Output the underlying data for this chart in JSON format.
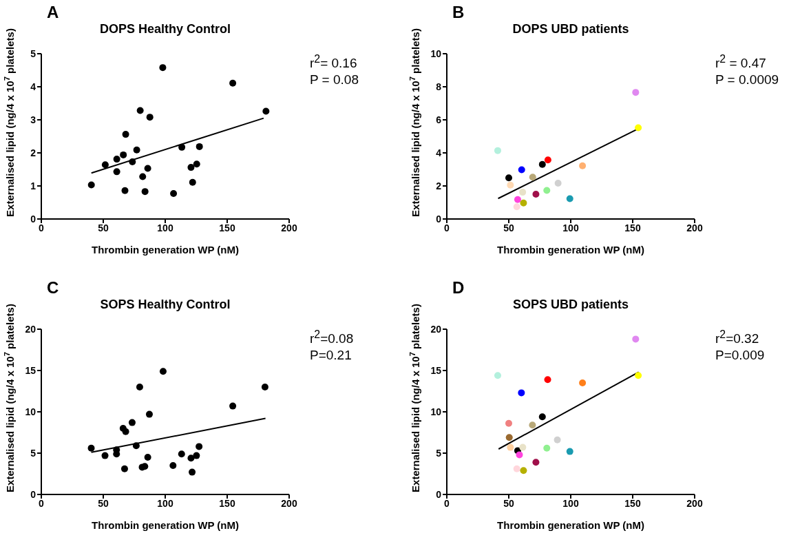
{
  "chart_data": [
    {
      "type": "scatter",
      "title": "DOPS Healthy Control",
      "xlabel": "Thrombin generation WP (nM)",
      "ylabel": "Externalised lipid (ng/4 x 10$^{7}$ platelets)",
      "xlim": [
        0,
        200
      ],
      "xticks": [
        0,
        50,
        100,
        150,
        200
      ],
      "ylim": [
        0,
        5
      ],
      "yticks": [
        0,
        1,
        2,
        3,
        4,
        5
      ],
      "annotations": [
        "A",
        "r$^{2}$= 0.16",
        "P = 0.08"
      ],
      "series": [
        {
          "marker": "circle",
          "color": "#000000",
          "x": [
            40.4,
            51.6,
            60.9,
            60.9,
            66.2,
            68.1,
            67.5,
            73.5,
            77.0,
            79.8,
            81.8,
            83.7,
            85.9,
            87.6,
            98.0,
            106.7,
            113.4,
            120.8,
            122.1,
            125.4,
            127.6,
            154.5,
            181.3
          ],
          "values": [
            1.03,
            1.64,
            1.43,
            1.81,
            1.94,
            2.56,
            0.86,
            1.73,
            2.09,
            3.28,
            1.28,
            0.83,
            1.53,
            3.08,
            4.58,
            0.77,
            2.17,
            1.56,
            1.11,
            1.66,
            2.19,
            4.11,
            3.26
          ]
        },
        {
          "type": "line",
          "marker": "none",
          "color": "#000000",
          "x": [
            40.4,
            179.4
          ],
          "values": [
            1.39,
            3.05
          ]
        }
      ]
    },
    {
      "type": "scatter",
      "title": "DOPS UBD patients",
      "xlabel": "Thrombin generation WP (nM)",
      "ylabel": "Externalised lipid (ng/4 x 10$^{7}$ platelets)",
      "xlim": [
        0,
        200
      ],
      "xticks": [
        0,
        50,
        100,
        150,
        200
      ],
      "ylim": [
        0,
        10
      ],
      "yticks": [
        0,
        2,
        4,
        6,
        8,
        10
      ],
      "annotations": [
        "B",
        "r$^{2}$ = 0.47",
        "P = 0.0009"
      ],
      "series": [
        {
          "marker": "circle",
          "x": [
            41.1,
            50.0,
            51.3,
            60.4,
            56.5,
            57.2,
            61.2,
            61.9,
            69.3,
            71.9,
            77.1,
            81.6,
            80.7,
            89.8,
            99.3,
            109.5,
            152.4,
            154.5
          ],
          "values": [
            4.14,
            2.49,
            2.05,
            2.98,
            0.74,
            1.18,
            1.62,
            0.97,
            2.53,
            1.5,
            3.3,
            3.57,
            1.73,
            2.17,
            1.23,
            3.22,
            7.66,
            5.52
          ],
          "colors": [
            "#b3f0dd",
            "#000000",
            "#ffd9b3",
            "#0000ff",
            "#ffd6dc",
            "#ff44dd",
            "#e8e2c8",
            "#b5b000",
            "#b8a878",
            "#a0104a",
            "#000000",
            "#ff0000",
            "#90f090",
            "#d0d0d0",
            "#1a9bb0",
            "#ffb070",
            "#e088f0",
            "#ffff00"
          ]
        },
        {
          "type": "line",
          "marker": "none",
          "color": "#000000",
          "x": [
            41.4,
            154.3
          ],
          "values": [
            1.24,
            5.45
          ]
        }
      ]
    },
    {
      "type": "scatter",
      "title": "SOPS Healthy Control",
      "xlabel": "Thrombin generation WP (nM)",
      "ylabel": "Externalised lipid (ng/4 x 10$^{7}$ platelets)",
      "xlim": [
        0,
        200
      ],
      "xticks": [
        0,
        50,
        100,
        150,
        200
      ],
      "ylim": [
        0,
        20
      ],
      "yticks": [
        0,
        5,
        10,
        15,
        20
      ],
      "annotations": [
        "C",
        "r$^{2}$=0.08",
        "P=0.21"
      ],
      "series": [
        {
          "marker": "circle",
          "color": "#000000",
          "x": [
            40.3,
            51.4,
            60.7,
            60.7,
            66.0,
            67.2,
            68.1,
            73.3,
            76.6,
            79.4,
            81.4,
            83.5,
            85.9,
            87.2,
            98.3,
            106.3,
            113.2,
            120.8,
            121.7,
            125.2,
            127.3,
            154.5,
            180.5
          ],
          "values": [
            5.6,
            4.7,
            5.4,
            4.9,
            8.0,
            3.1,
            7.6,
            8.7,
            5.9,
            13.0,
            3.3,
            3.4,
            4.5,
            9.7,
            14.9,
            3.5,
            4.9,
            4.4,
            2.7,
            4.7,
            5.8,
            10.7,
            13.0
          ]
        },
        {
          "type": "line",
          "marker": "none",
          "color": "#000000",
          "x": [
            40.3,
            180.9
          ],
          "values": [
            5.1,
            9.2
          ]
        }
      ]
    },
    {
      "type": "scatter",
      "title": "SOPS UBD patients",
      "xlabel": "Thrombin generation WP (nM)",
      "ylabel": "Externalised lipid (ng/4 x 10$^{7}$ platelets)",
      "xlim": [
        0,
        200
      ],
      "xticks": [
        0,
        50,
        100,
        150,
        200
      ],
      "ylim": [
        0,
        20
      ],
      "yticks": [
        0,
        5,
        10,
        15,
        20
      ],
      "annotations": [
        "D",
        "r$^{2}$=0.32",
        "P=0.009"
      ],
      "series": [
        {
          "marker": "circle",
          "x": [
            41.1,
            50.0,
            50.4,
            51.3,
            57.2,
            58.6,
            56.5,
            61.3,
            61.9,
            60.2,
            69.1,
            71.9,
            77.1,
            81.4,
            80.7,
            89.2,
            99.3,
            109.5,
            152.4,
            154.5
          ],
          "values": [
            14.4,
            8.6,
            6.9,
            5.7,
            5.3,
            4.8,
            3.1,
            5.7,
            2.9,
            12.3,
            8.4,
            3.9,
            9.4,
            13.9,
            5.6,
            6.6,
            5.2,
            13.5,
            18.8,
            14.4
          ],
          "colors": [
            "#b3f0dd",
            "#f08080",
            "#9a6a30",
            "#ffd0a0",
            "#000000",
            "#ff44dd",
            "#ffd6dc",
            "#e8e2c8",
            "#b5b000",
            "#0000ff",
            "#b8a878",
            "#a0104a",
            "#000000",
            "#ff0000",
            "#90f090",
            "#d0d0d0",
            "#1a9bb0",
            "#ff7f1a",
            "#e088f0",
            "#ffff00"
          ]
        },
        {
          "type": "line",
          "marker": "none",
          "color": "#000000",
          "x": [
            41.8,
            154.8
          ],
          "values": [
            5.5,
            14.8
          ]
        }
      ]
    }
  ]
}
